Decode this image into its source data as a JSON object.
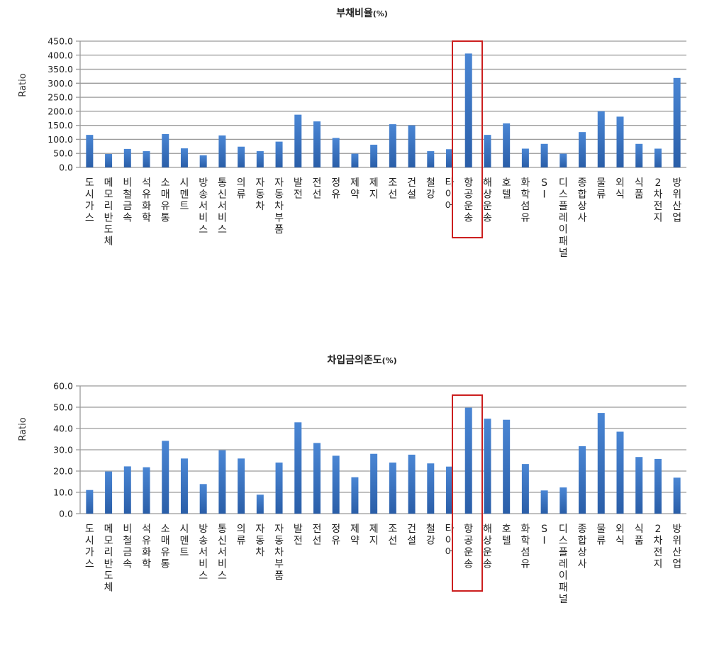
{
  "chart_data": [
    {
      "type": "bar",
      "title": "부채비율",
      "title_suffix": "(%)",
      "xlabel": "",
      "ylabel": "Ratio",
      "ylim": [
        0,
        450
      ],
      "yticks": [
        "0.0",
        "50.0",
        "100.0",
        "150.0",
        "200.0",
        "250.0",
        "300.0",
        "350.0",
        "400.0",
        "450.0"
      ],
      "ytick_step": 50,
      "grid": true,
      "legend": null,
      "bar_color": "#3a74c4",
      "highlight": {
        "category": "항공운송",
        "color": "#cc1f1f"
      },
      "categories": [
        "도시가스",
        "메모리반도체",
        "비철금속",
        "석유화학",
        "소매유통",
        "시멘트",
        "방송서비스",
        "통신서비스",
        "의류",
        "자동차",
        "자동차부품",
        "발전",
        "전선",
        "정유",
        "제약",
        "제지",
        "조선",
        "건설",
        "철강",
        "타이어",
        "항공운송",
        "해상운송",
        "호텔",
        "화학섬유",
        "SI",
        "디스플레이패널",
        "종합상사",
        "물류",
        "외식",
        "식품",
        "2차전지",
        "방위산업"
      ],
      "values": [
        116,
        48,
        66,
        58,
        119,
        68,
        43,
        114,
        74,
        58,
        92,
        188,
        164,
        105,
        49,
        81,
        154,
        150,
        58,
        65,
        406,
        116,
        157,
        67,
        84,
        49,
        126,
        200,
        181,
        84,
        67,
        319
      ]
    },
    {
      "type": "bar",
      "title": "차입금의존도",
      "title_suffix": "(%)",
      "xlabel": "",
      "ylabel": "Ratio",
      "ylim": [
        0,
        60
      ],
      "yticks": [
        "0.0",
        "10.0",
        "20.0",
        "30.0",
        "40.0",
        "50.0",
        "60.0"
      ],
      "ytick_step": 10,
      "grid": true,
      "legend": null,
      "bar_color": "#3a74c4",
      "highlight": {
        "category": "항공운송",
        "color": "#cc1f1f"
      },
      "categories": [
        "도시가스",
        "메모리반도체",
        "비철금속",
        "석유화학",
        "소매유통",
        "시멘트",
        "방송서비스",
        "통신서비스",
        "의류",
        "자동차",
        "자동차부품",
        "발전",
        "전선",
        "정유",
        "제약",
        "제지",
        "조선",
        "건설",
        "철강",
        "타이어",
        "항공운송",
        "해상운송",
        "호텔",
        "화학섬유",
        "SI",
        "디스플레이패널",
        "종합상사",
        "물류",
        "외식",
        "식품",
        "2차전지",
        "방위산업"
      ],
      "values": [
        11.1,
        19.8,
        22.2,
        21.8,
        34.2,
        25.9,
        13.9,
        29.8,
        25.9,
        8.9,
        24.0,
        42.9,
        33.2,
        27.2,
        17.1,
        28.1,
        24.0,
        27.7,
        23.6,
        22.1,
        49.8,
        44.6,
        44.1,
        23.3,
        10.9,
        12.3,
        31.7,
        47.3,
        38.5,
        26.6,
        25.7,
        16.9
      ]
    }
  ]
}
